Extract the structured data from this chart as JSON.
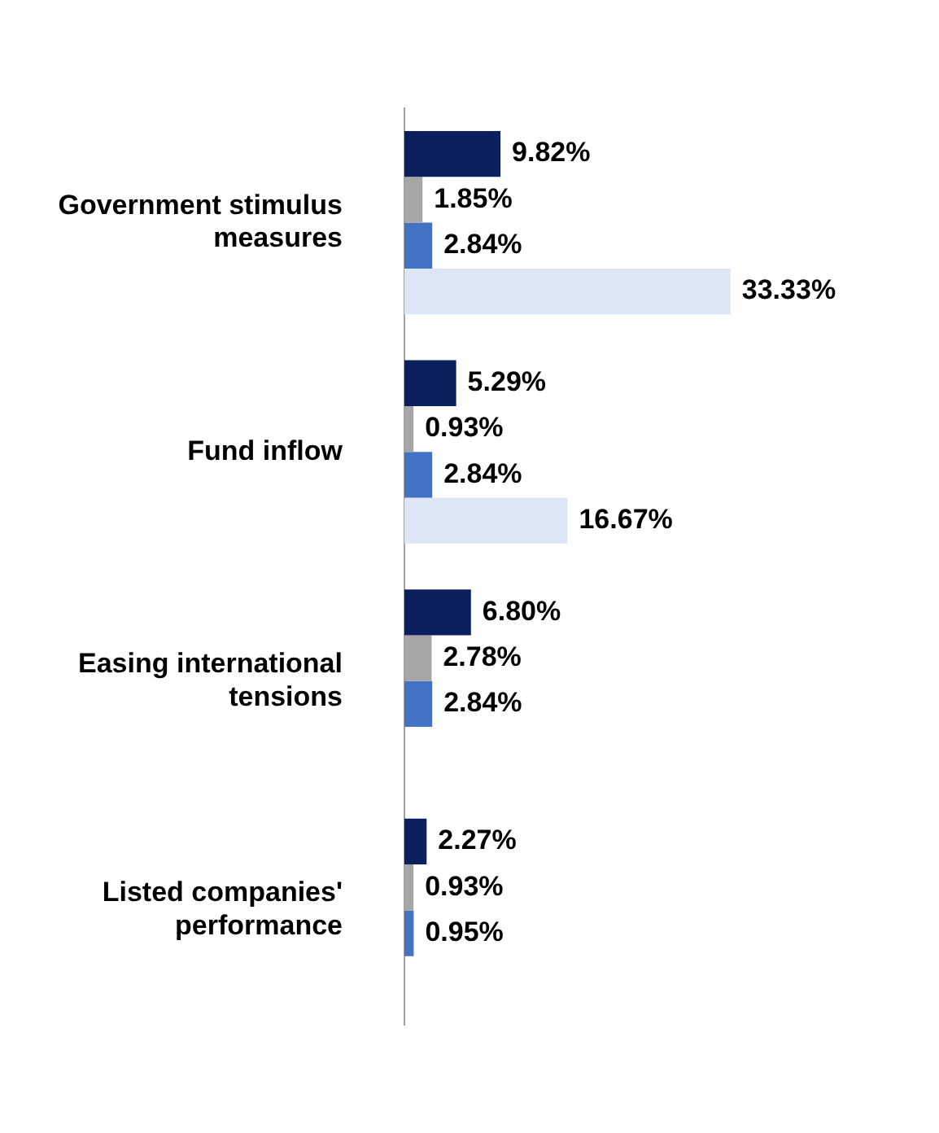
{
  "chart_data": {
    "type": "bar",
    "orientation": "horizontal",
    "tick_labels": "y",
    "legend": false,
    "categories": [
      "Government stimulus measures",
      "Fund inflow",
      "Easing international tensions",
      "Listed companies' performance"
    ],
    "series": [
      {
        "color": "#0b1f5c",
        "values": [
          9.82,
          5.29,
          6.8,
          2.27
        ],
        "value_labels": [
          "9.82%",
          "5.29%",
          "6.80%",
          "2.27%"
        ]
      },
      {
        "color": "#a6a6a6",
        "values": [
          1.85,
          0.93,
          2.78,
          0.93
        ],
        "value_labels": [
          "1.85%",
          "0.93%",
          "2.78%",
          "0.93%"
        ]
      },
      {
        "color": "#4472c4",
        "values": [
          2.84,
          2.84,
          2.84,
          0.95
        ],
        "value_labels": [
          "2.84%",
          "2.84%",
          "2.84%",
          "0.95%"
        ]
      },
      {
        "color": "#dce6f4",
        "values": [
          33.33,
          16.67,
          null,
          null
        ],
        "value_labels": [
          "33.33%",
          "16.67%",
          null,
          null
        ]
      }
    ]
  }
}
